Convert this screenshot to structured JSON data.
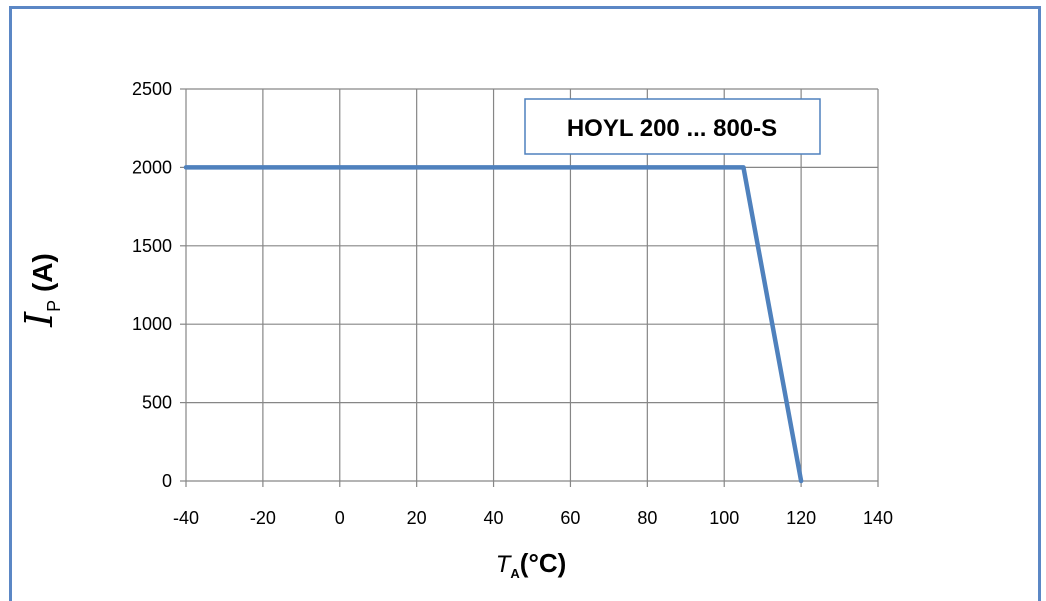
{
  "chart_data": {
    "type": "line",
    "title": "",
    "annotation": "HOYL 200 ... 800-S",
    "xlabel": {
      "symbol": "T",
      "subscript": "A",
      "unit": "(°C)"
    },
    "ylabel": {
      "symbol": "I",
      "subscript": "P",
      "unit": "(A)"
    },
    "xlim": [
      -40,
      140
    ],
    "ylim": [
      0,
      2500
    ],
    "x_ticks": [
      -40,
      -20,
      0,
      20,
      40,
      60,
      80,
      100,
      120,
      140
    ],
    "y_ticks": [
      0,
      500,
      1000,
      1500,
      2000,
      2500
    ],
    "x_tick_labels": [
      "-40",
      "-20",
      "0",
      "20",
      "40",
      "60",
      "80",
      "100",
      "120",
      "140"
    ],
    "y_tick_labels": [
      "0",
      "500",
      "1000",
      "1500",
      "2000",
      "2500"
    ],
    "grid": true,
    "series": [
      {
        "x": [
          -40,
          105,
          120
        ],
        "y": [
          2000,
          2000,
          0
        ],
        "color": "#4f81bd"
      }
    ]
  }
}
